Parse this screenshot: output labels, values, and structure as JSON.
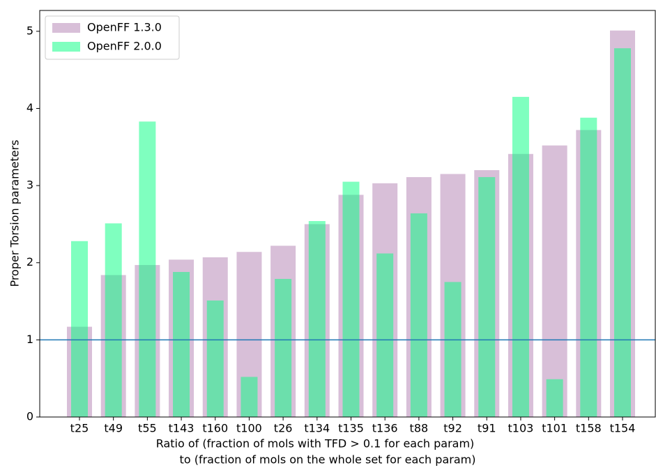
{
  "chart_data": {
    "type": "bar",
    "xlabel": [
      "Ratio of (fraction of mols with TFD > 0.1 for each param)",
      "to (fraction of mols on the whole set for each param)"
    ],
    "ylabel": "Proper Torsion parameters",
    "categories": [
      "t25",
      "t49",
      "t55",
      "t143",
      "t160",
      "t100",
      "t26",
      "t134",
      "t135",
      "t136",
      "t88",
      "t92",
      "t91",
      "t103",
      "t101",
      "t158",
      "t154"
    ],
    "series": [
      {
        "name": "OpenFF 1.3.0",
        "color": "#d8bfd8",
        "values": [
          1.17,
          1.84,
          1.97,
          2.04,
          2.07,
          2.14,
          2.22,
          2.5,
          2.88,
          3.03,
          3.11,
          3.15,
          3.2,
          3.41,
          3.52,
          3.72,
          5.01
        ]
      },
      {
        "name": "OpenFF 2.0.0",
        "color": "#00ff7f",
        "values": [
          2.28,
          2.51,
          3.83,
          1.88,
          1.51,
          0.52,
          1.79,
          2.54,
          3.05,
          2.12,
          2.64,
          1.75,
          3.11,
          4.15,
          0.49,
          3.88,
          4.78
        ]
      }
    ],
    "hline": 1,
    "hline_color": "#1f77b4",
    "ylim": [
      0,
      5.27
    ],
    "yticks": [
      0,
      1,
      2,
      3,
      4,
      5
    ],
    "legend": "upper left"
  }
}
